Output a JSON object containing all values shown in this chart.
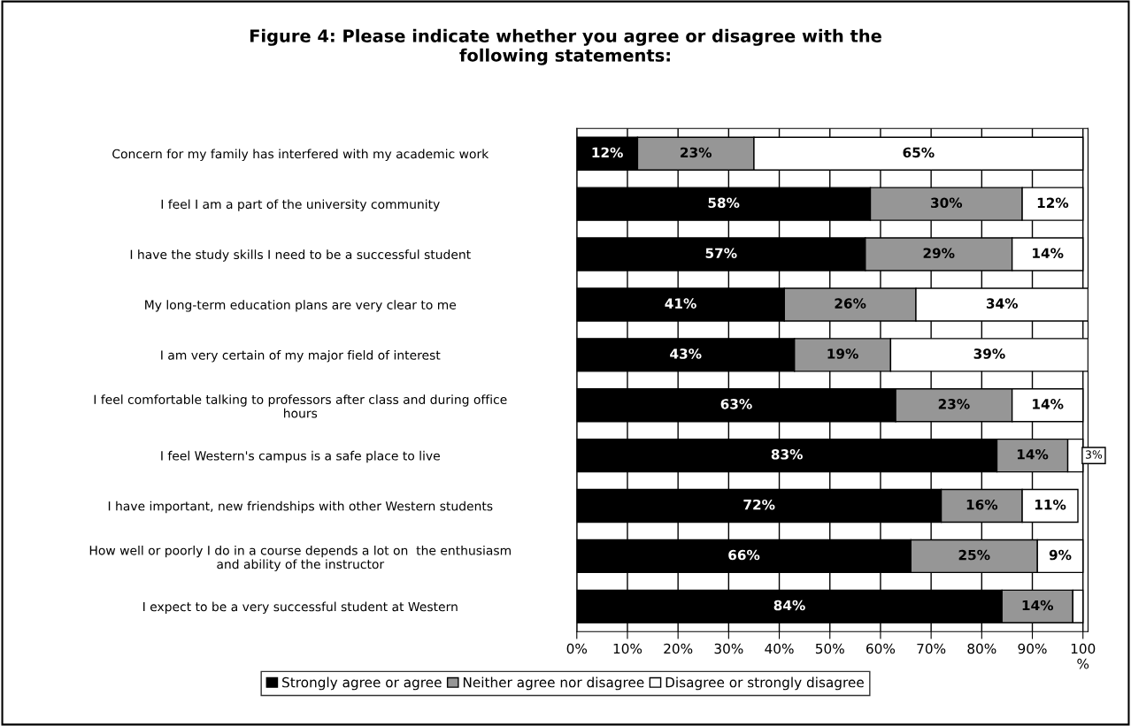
{
  "chart_data": {
    "type": "bar",
    "orientation": "horizontal",
    "stacked": true,
    "title": "Figure 4: Please indicate whether you agree or disagree with the\nfollowing statements:",
    "categories": [
      "Concern for my family has interfered with my academic work",
      "I feel I am a part of the university community",
      "I have the study skills I need to be a successful student",
      "My long-term education plans are very clear to me",
      "I am very certain of my major field of interest",
      "I feel comfortable talking to professors after class and during office\nhours",
      "I feel Western's campus is a safe place to live",
      "I have important, new friendships with other Western students",
      "How well or poorly I do in a course depends a lot on  the enthusiasm\nand ability of the instructor",
      "I expect to be a very successful student at Western"
    ],
    "series": [
      {
        "name": "Strongly agree or agree",
        "color": "#000000",
        "values": [
          12,
          58,
          57,
          41,
          43,
          63,
          83,
          72,
          66,
          84
        ],
        "value_labels": [
          "12%",
          "58%",
          "57%",
          "41%",
          "43%",
          "63%",
          "83%",
          "72%",
          "66%",
          "84%"
        ]
      },
      {
        "name": "Neither agree nor disagree",
        "color": "#969696",
        "values": [
          23,
          30,
          29,
          26,
          19,
          23,
          14,
          16,
          25,
          14
        ],
        "value_labels": [
          "23%",
          "30%",
          "29%",
          "26%",
          "19%",
          "23%",
          "14%",
          "16%",
          "25%",
          "14%"
        ]
      },
      {
        "name": "Disagree or strongly disagree",
        "color": "#ffffff",
        "values": [
          65,
          12,
          14,
          34,
          39,
          14,
          3,
          11,
          9,
          2
        ],
        "value_labels": [
          "65%",
          "12%",
          "14%",
          "34%",
          "39%",
          "14%",
          "3%",
          "11%",
          "9%",
          null
        ]
      }
    ],
    "xlim": [
      0,
      101
    ],
    "xticks": [
      {
        "value": 0,
        "label": "0%"
      },
      {
        "value": 10,
        "label": "10%"
      },
      {
        "value": 20,
        "label": "20%"
      },
      {
        "value": 30,
        "label": "30%"
      },
      {
        "value": 40,
        "label": "40%"
      },
      {
        "value": 50,
        "label": "50%"
      },
      {
        "value": 60,
        "label": "60%"
      },
      {
        "value": 70,
        "label": "70%"
      },
      {
        "value": 80,
        "label": "80%"
      },
      {
        "value": 90,
        "label": "90%"
      },
      {
        "value": 100,
        "label": "100\n%"
      }
    ],
    "grid": "x",
    "legend": "bottom"
  }
}
